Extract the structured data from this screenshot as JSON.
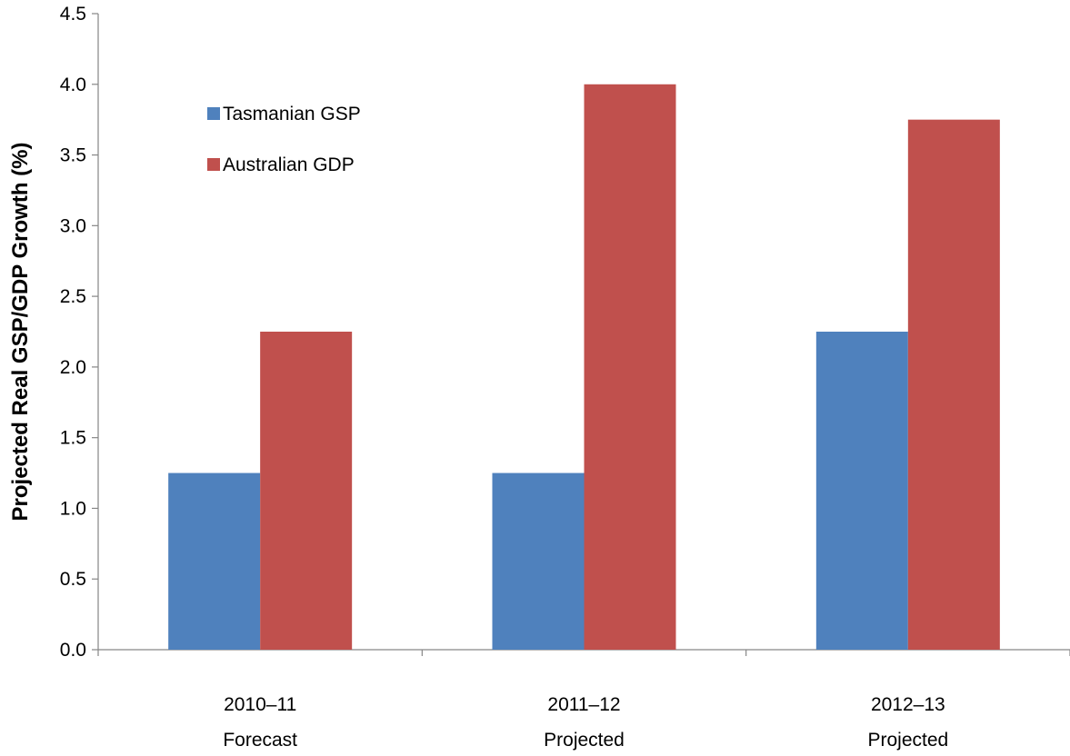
{
  "chart_data": {
    "type": "bar",
    "categories": [
      "2010–11",
      "2011–12",
      "2012–13"
    ],
    "category_sublabels": [
      "Forecast",
      "Projected",
      "Projected"
    ],
    "series": [
      {
        "name": "Tasmanian GSP",
        "values": [
          1.25,
          1.25,
          2.25
        ],
        "color": "#4F81BD"
      },
      {
        "name": "Australian GDP",
        "values": [
          2.25,
          4.0,
          3.75
        ],
        "color": "#C0504D"
      }
    ],
    "xlabel": "",
    "ylabel": "Projected Real GSP/GDP Growth (%)",
    "ylim": [
      0,
      4.5
    ],
    "yticks": [
      "0.0",
      "0.5",
      "1.0",
      "1.5",
      "2.0",
      "2.5",
      "3.0",
      "3.5",
      "4.0",
      "4.5"
    ],
    "grid": false,
    "legend": "top-left"
  }
}
